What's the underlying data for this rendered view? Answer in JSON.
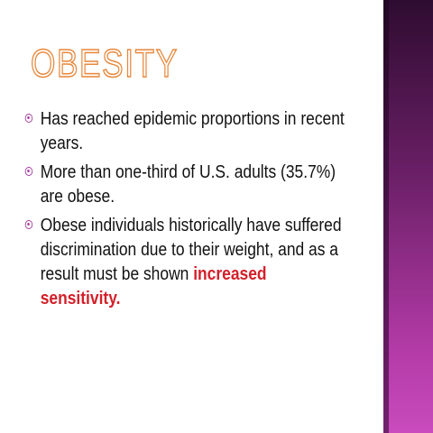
{
  "header": {
    "title": "OBESITY"
  },
  "bullets": [
    {
      "parts": [
        "Has reached epidemic proportions in recent years."
      ]
    },
    {
      "parts": [
        "More than one-third of U.S. adults (35.7%) are obese."
      ]
    },
    {
      "parts": [
        "Obese individuals historically have suffered discrimination due to their weight, and as a result must be shown ",
        "increased sensitivity."
      ]
    }
  ]
}
